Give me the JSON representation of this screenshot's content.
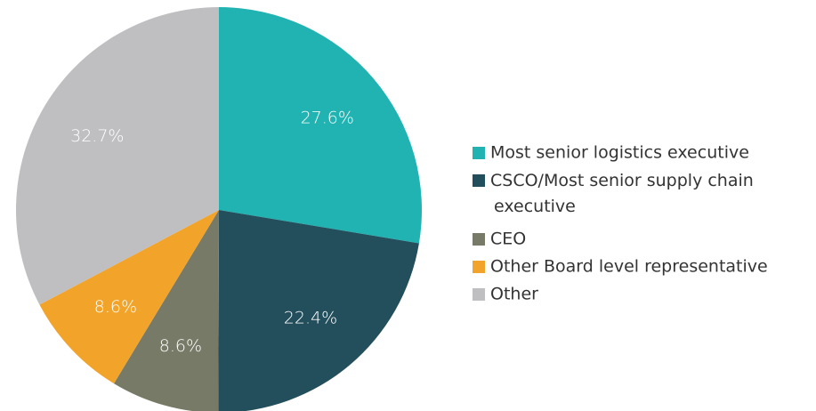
{
  "chart_data": {
    "type": "pie",
    "categories": [
      "Most senior logistics executive",
      "CSCO/Most senior supply chain executive",
      "CEO",
      "Other Board level representative",
      "Other"
    ],
    "values": [
      27.6,
      22.4,
      8.6,
      8.6,
      32.7
    ],
    "value_labels": [
      "27.6%",
      "22.4%",
      "8.6%",
      "8.6%",
      "32.7%"
    ],
    "colors": [
      "#20b3b1",
      "#234e5c",
      "#777a66",
      "#f2a42a",
      "#bfbfc1"
    ]
  }
}
